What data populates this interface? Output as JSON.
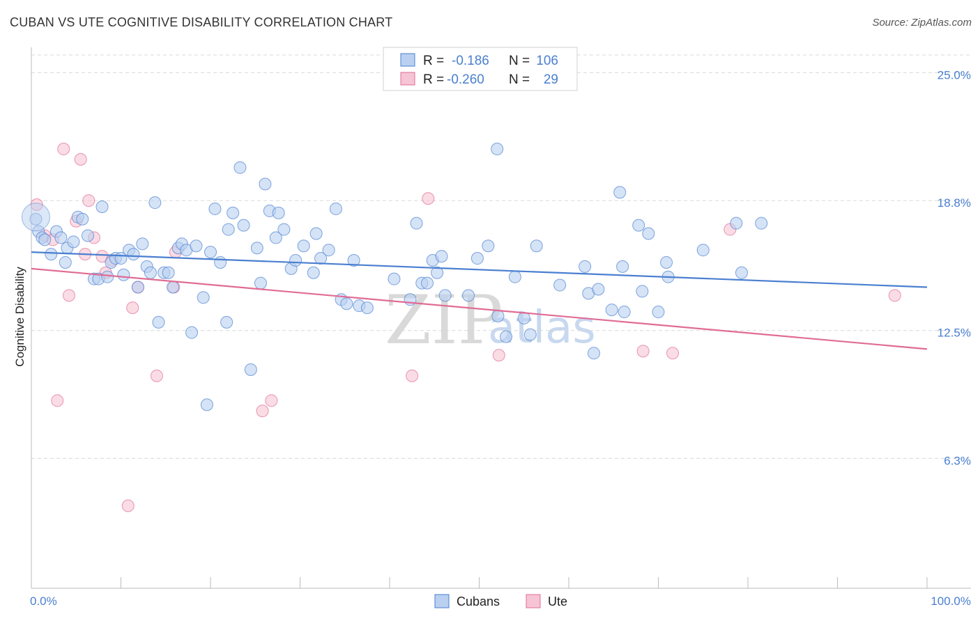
{
  "title": "CUBAN VS UTE COGNITIVE DISABILITY CORRELATION CHART",
  "source": "Source: ZipAtlas.com",
  "watermark": {
    "zip": "ZIP",
    "atlas": "atlas"
  },
  "colors": {
    "cubans": "#4a7fd0",
    "cubans_fill": "#b9d0f0",
    "ute": "#e06c94",
    "ute_fill": "#f6c4d4",
    "grid": "#d8d8d8",
    "axis": "#bbbbbb"
  },
  "legend": {
    "rows": [
      {
        "r_label": "R =",
        "r_value": "-0.186",
        "n_label": "N =",
        "n_value": "106"
      },
      {
        "r_label": "R =",
        "r_value": "-0.260",
        "n_label": "N =",
        "n_value": "29"
      }
    ]
  },
  "bottom_legend": {
    "cubans": "Cubans",
    "ute": "Ute"
  },
  "chart_data": {
    "type": "scatter",
    "title": "CUBAN VS UTE COGNITIVE DISABILITY CORRELATION CHART",
    "xlabel": "",
    "ylabel": "Cognitive Disability",
    "xlim": [
      0,
      100
    ],
    "ylim": [
      0,
      26.5
    ],
    "x_tick_labels": {
      "min": "0.0%",
      "max": "100.0%"
    },
    "y_ticks": [
      {
        "value": 6.3,
        "label": "6.3%"
      },
      {
        "value": 12.5,
        "label": "12.5%"
      },
      {
        "value": 18.8,
        "label": "18.8%"
      },
      {
        "value": 25.0,
        "label": "25.0%"
      }
    ],
    "series": [
      {
        "name": "Cubans",
        "r": -0.186,
        "n": 106,
        "trend": {
          "x": [
            0,
            100
          ],
          "y": [
            16.3,
            14.6
          ]
        },
        "points": [
          [
            0.5,
            17.9
          ],
          [
            0.8,
            17.3
          ],
          [
            1.2,
            17.0
          ],
          [
            1.5,
            16.9
          ],
          [
            2.2,
            16.2
          ],
          [
            2.8,
            17.3
          ],
          [
            3.3,
            17.0
          ],
          [
            3.8,
            15.8
          ],
          [
            4.0,
            16.5
          ],
          [
            4.7,
            16.8
          ],
          [
            5.2,
            18.0
          ],
          [
            5.7,
            17.9
          ],
          [
            6.3,
            17.1
          ],
          [
            7.0,
            15.0
          ],
          [
            7.5,
            15.0
          ],
          [
            7.9,
            18.5
          ],
          [
            8.5,
            15.1
          ],
          [
            8.9,
            15.8
          ],
          [
            9.4,
            16.0
          ],
          [
            10.0,
            16.0
          ],
          [
            10.3,
            15.2
          ],
          [
            10.9,
            16.4
          ],
          [
            11.4,
            16.2
          ],
          [
            11.9,
            14.6
          ],
          [
            12.4,
            16.7
          ],
          [
            12.9,
            15.6
          ],
          [
            13.3,
            15.3
          ],
          [
            13.8,
            18.7
          ],
          [
            14.2,
            12.9
          ],
          [
            14.8,
            15.3
          ],
          [
            15.3,
            15.3
          ],
          [
            15.8,
            14.6
          ],
          [
            16.4,
            16.5
          ],
          [
            16.8,
            16.7
          ],
          [
            17.3,
            16.4
          ],
          [
            17.9,
            12.4
          ],
          [
            18.4,
            16.6
          ],
          [
            19.2,
            14.1
          ],
          [
            19.6,
            8.9
          ],
          [
            20.0,
            16.3
          ],
          [
            20.5,
            18.4
          ],
          [
            21.1,
            15.8
          ],
          [
            21.8,
            12.9
          ],
          [
            22.0,
            17.4
          ],
          [
            22.5,
            18.2
          ],
          [
            23.3,
            20.4
          ],
          [
            23.7,
            17.6
          ],
          [
            24.5,
            10.6
          ],
          [
            25.2,
            16.5
          ],
          [
            25.6,
            14.8
          ],
          [
            26.1,
            19.6
          ],
          [
            26.6,
            18.3
          ],
          [
            27.3,
            17.0
          ],
          [
            27.6,
            18.2
          ],
          [
            28.2,
            17.4
          ],
          [
            29.0,
            15.5
          ],
          [
            29.5,
            15.9
          ],
          [
            30.4,
            16.6
          ],
          [
            31.5,
            15.3
          ],
          [
            31.8,
            17.2
          ],
          [
            32.3,
            16.0
          ],
          [
            33.2,
            16.4
          ],
          [
            34.0,
            18.4
          ],
          [
            34.6,
            14.0
          ],
          [
            35.2,
            13.8
          ],
          [
            36.0,
            15.9
          ],
          [
            36.6,
            13.7
          ],
          [
            37.5,
            13.6
          ],
          [
            40.5,
            15.0
          ],
          [
            42.3,
            14.0
          ],
          [
            43.0,
            17.7
          ],
          [
            43.6,
            14.8
          ],
          [
            44.2,
            14.8
          ],
          [
            44.8,
            15.9
          ],
          [
            45.3,
            15.3
          ],
          [
            45.8,
            16.1
          ],
          [
            46.2,
            14.2
          ],
          [
            48.8,
            14.2
          ],
          [
            49.8,
            16.0
          ],
          [
            51.0,
            16.6
          ],
          [
            52.1,
            13.2
          ],
          [
            53.0,
            12.2
          ],
          [
            54.0,
            15.1
          ],
          [
            55.0,
            13.1
          ],
          [
            55.7,
            12.3
          ],
          [
            56.4,
            16.6
          ],
          [
            59.0,
            14.7
          ],
          [
            61.8,
            15.6
          ],
          [
            62.2,
            14.3
          ],
          [
            62.8,
            11.4
          ],
          [
            63.3,
            14.5
          ],
          [
            64.8,
            13.5
          ],
          [
            65.7,
            19.2
          ],
          [
            66.2,
            13.4
          ],
          [
            67.8,
            17.6
          ],
          [
            68.2,
            14.4
          ],
          [
            68.9,
            17.2
          ],
          [
            70.0,
            13.4
          ],
          [
            70.9,
            15.8
          ],
          [
            71.1,
            15.1
          ],
          [
            75.0,
            16.4
          ],
          [
            78.7,
            17.7
          ],
          [
            79.3,
            15.3
          ],
          [
            81.5,
            17.7
          ],
          [
            52.0,
            21.3
          ],
          [
            66.0,
            15.6
          ]
        ]
      },
      {
        "name": "Ute",
        "r": -0.26,
        "n": 29,
        "trend": {
          "x": [
            0,
            100
          ],
          "y": [
            15.5,
            11.6
          ]
        },
        "points": [
          [
            0.6,
            18.6
          ],
          [
            1.5,
            17.1
          ],
          [
            2.4,
            16.9
          ],
          [
            2.9,
            9.1
          ],
          [
            3.6,
            21.3
          ],
          [
            4.2,
            14.2
          ],
          [
            5.0,
            17.8
          ],
          [
            5.5,
            20.8
          ],
          [
            6.0,
            16.2
          ],
          [
            6.4,
            18.8
          ],
          [
            7.0,
            17.0
          ],
          [
            7.9,
            16.1
          ],
          [
            8.3,
            15.3
          ],
          [
            9.0,
            15.9
          ],
          [
            10.8,
            4.0
          ],
          [
            11.3,
            13.6
          ],
          [
            11.9,
            14.6
          ],
          [
            14.0,
            10.3
          ],
          [
            15.9,
            14.6
          ],
          [
            16.1,
            16.3
          ],
          [
            25.8,
            8.6
          ],
          [
            26.8,
            9.1
          ],
          [
            42.5,
            10.3
          ],
          [
            44.3,
            18.9
          ],
          [
            52.2,
            11.3
          ],
          [
            68.3,
            11.5
          ],
          [
            71.6,
            11.4
          ],
          [
            78.0,
            17.4
          ],
          [
            96.4,
            14.2
          ]
        ]
      }
    ]
  }
}
